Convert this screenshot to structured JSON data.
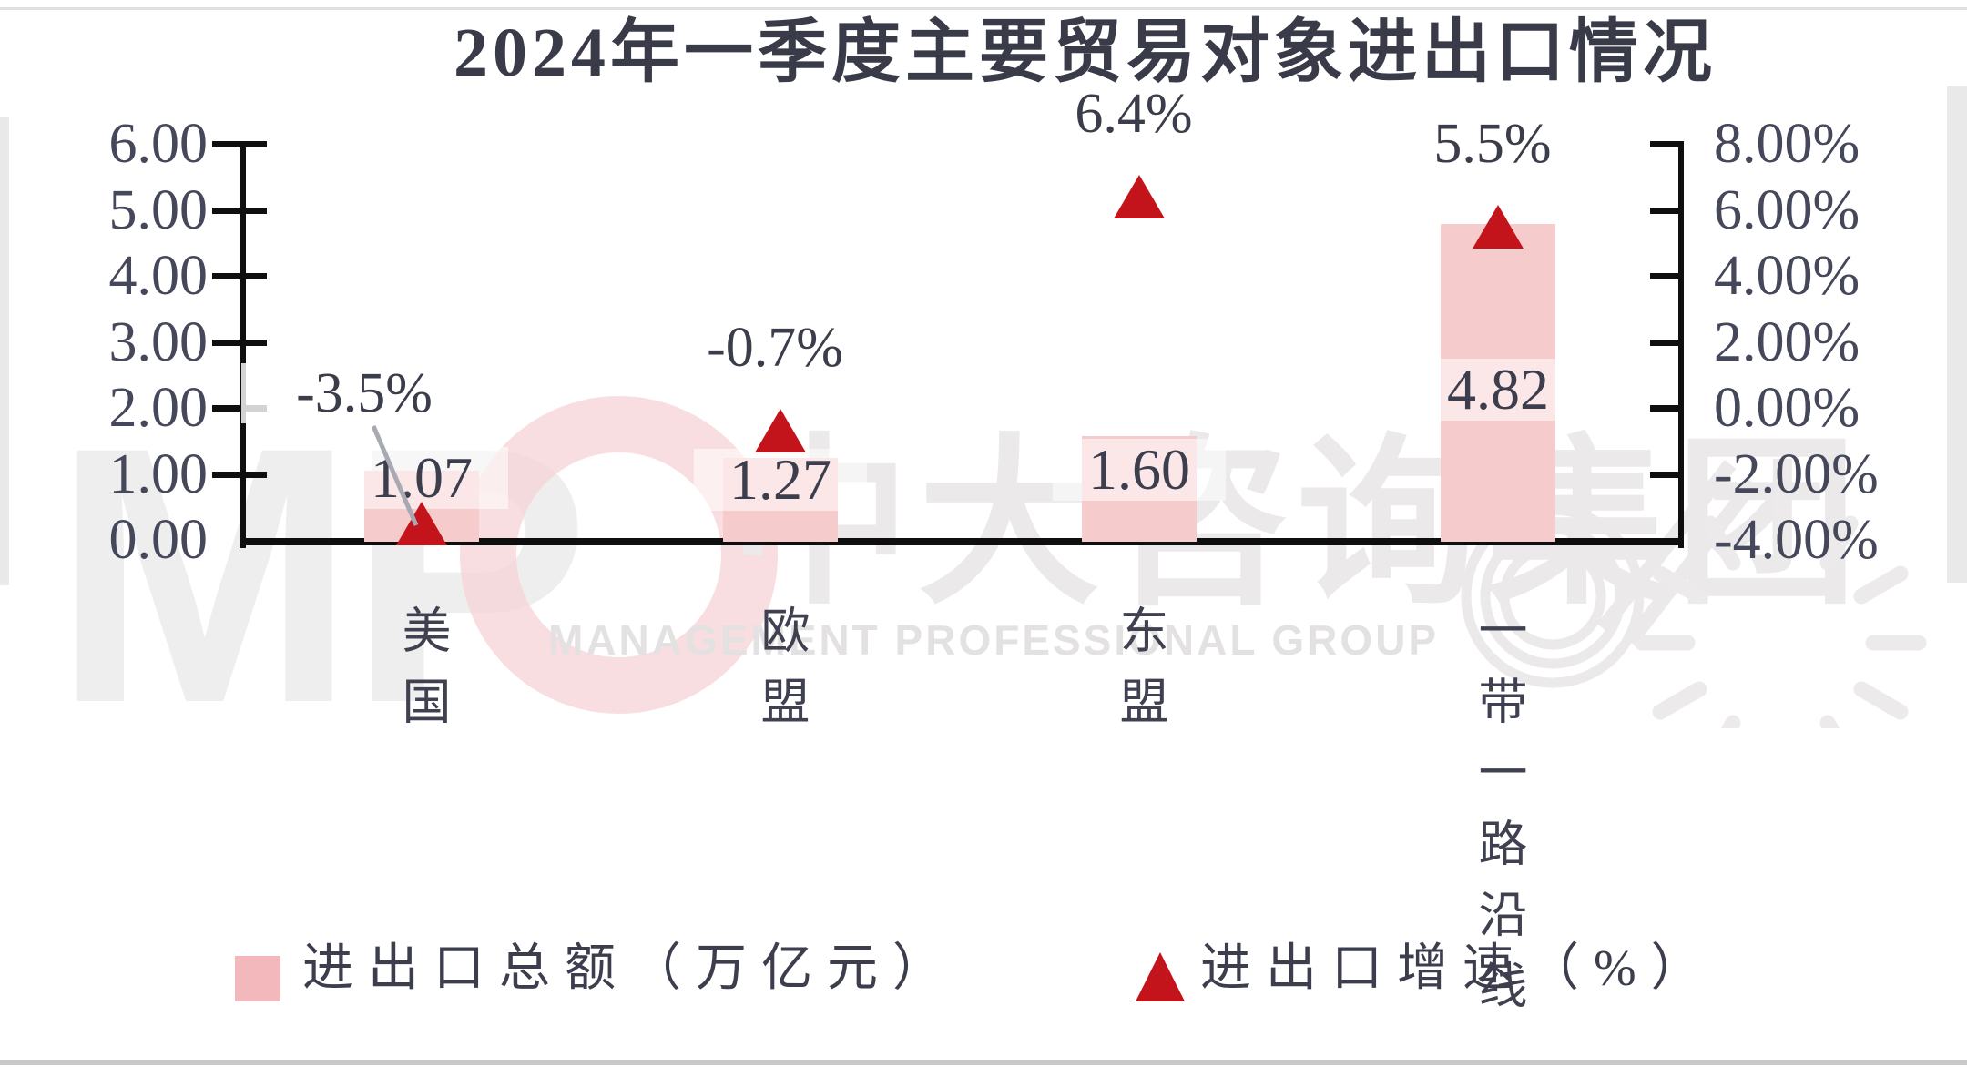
{
  "title": "2024年一季度主要贸易对象进出口情况",
  "watermark": {
    "logo_text": "MP",
    "cn_text": "中大咨询集团",
    "en_text": "MANAGEMENT PROFESSIONAL GROUP"
  },
  "axes": {
    "left": {
      "ticks": [
        "6.00",
        "5.00",
        "4.00",
        "3.00",
        "2.00",
        "1.00",
        "0.00"
      ]
    },
    "right": {
      "ticks": [
        "8.00%",
        "6.00%",
        "4.00%",
        "2.00%",
        "0.00%",
        "-2.00%",
        "-4.00%"
      ]
    }
  },
  "legend": [
    {
      "marker": "square",
      "label": "进出口总额（万亿元）",
      "color": "#f2b8bc"
    },
    {
      "marker": "triangle",
      "label": "进出口增速（%）",
      "color": "#c3141c"
    }
  ],
  "colors": {
    "bar_fill": "#f6cbcc",
    "triangle_red": "#c3141c",
    "axis_black": "#0f0f0f",
    "text_dark": "#3b3d4a",
    "leader_line_gray": "#a7aab2",
    "watermark_gray": "#ebe9e9",
    "watermark_pink": "#f5d3d5"
  },
  "chart_data": {
    "type": "combo",
    "title": "2024年一季度主要贸易对象进出口情况",
    "categories": [
      "美国",
      "欧盟",
      "东盟",
      "一带一路沿线"
    ],
    "series": [
      {
        "name": "进出口总额（万亿元）",
        "type": "bar",
        "axis": "left",
        "values": [
          1.07,
          1.27,
          1.6,
          4.82
        ],
        "labels": [
          "1.07",
          "1.27",
          "1.60",
          "4.82"
        ],
        "color": "#f6cbcc"
      },
      {
        "name": "进出口增速（%）",
        "type": "scatter",
        "marker": "triangle",
        "axis": "right",
        "values": [
          -3.5,
          -0.7,
          6.4,
          5.5
        ],
        "labels": [
          "-3.5%",
          "-0.7%",
          "6.4%",
          "5.5%"
        ],
        "color": "#c3141c"
      }
    ],
    "left_axis": {
      "min": 0,
      "max": 6,
      "step": 1,
      "format": "0.00"
    },
    "right_axis": {
      "min": -4,
      "max": 8,
      "step": 2,
      "format": "0.00%"
    },
    "grid": false,
    "legend_position": "bottom",
    "annotations": {
      "callout_on_first_point": true
    }
  }
}
